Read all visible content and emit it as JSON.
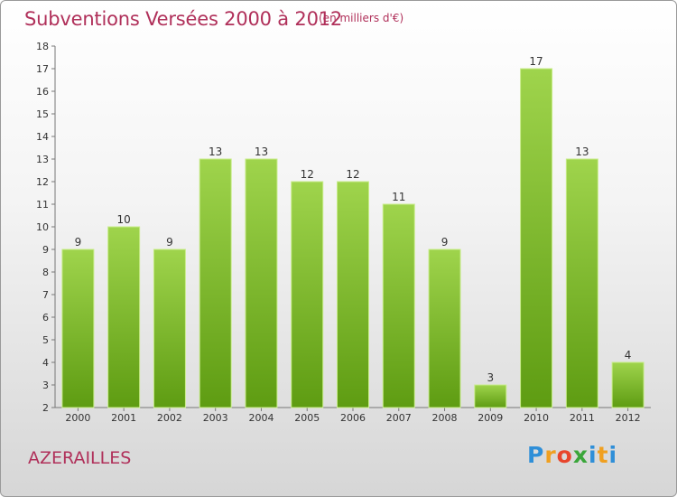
{
  "header": {
    "title": "Subventions Versées 2000 à 2012",
    "subtitle": "(en milliers d'€)"
  },
  "commune": "AZERAILLES",
  "logo": "Proxiti",
  "colors": {
    "title": "#b0305a",
    "bar_top": "#9fd44c",
    "bar_bottom": "#5e9c12"
  },
  "chart_data": {
    "type": "bar",
    "title": "Subventions Versées 2000 à 2012",
    "subtitle": "(en milliers d'€)",
    "categories": [
      "2000",
      "2001",
      "2002",
      "2003",
      "2004",
      "2005",
      "2006",
      "2007",
      "2008",
      "2009",
      "2010",
      "2011",
      "2012"
    ],
    "values": [
      9,
      10,
      9,
      13,
      13,
      12,
      12,
      11,
      9,
      3,
      17,
      13,
      4
    ],
    "ylim": [
      2,
      18
    ],
    "yticks": [
      2,
      3,
      4,
      5,
      6,
      7,
      8,
      9,
      10,
      11,
      12,
      13,
      14,
      15,
      16,
      17,
      18
    ],
    "grid": false,
    "data_labels": true
  }
}
